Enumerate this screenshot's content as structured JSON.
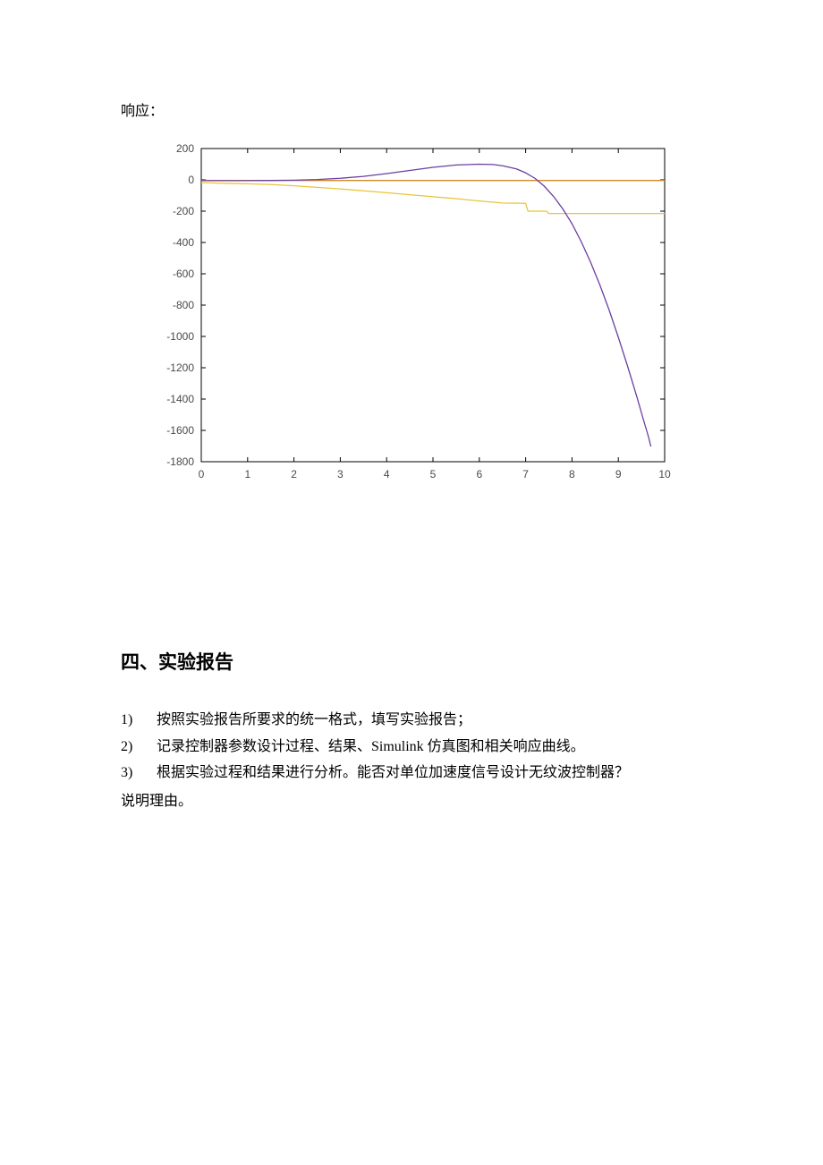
{
  "response_label": "响应：",
  "chart": {
    "type": "line",
    "background_color": "#ffffff",
    "axis_color": "#000000",
    "tick_color": "#000000",
    "label_color": "#4a4a4a",
    "label_fontsize": 12,
    "xlim": [
      0,
      10
    ],
    "ylim": [
      -1800,
      200
    ],
    "xtick_step": 1,
    "ytick_step": 200,
    "xticks": [
      0,
      1,
      2,
      3,
      4,
      5,
      6,
      7,
      8,
      9,
      10
    ],
    "yticks": [
      200,
      0,
      -200,
      -400,
      -600,
      -800,
      -1000,
      -1200,
      -1400,
      -1600,
      -1800
    ],
    "line_width": 1.3,
    "series": [
      {
        "name": "orange",
        "color": "#d18a2a",
        "points": [
          [
            0,
            -4
          ],
          [
            1,
            -4
          ],
          [
            2,
            -4
          ],
          [
            3,
            -4
          ],
          [
            4,
            -4
          ],
          [
            5,
            -4
          ],
          [
            6,
            -4
          ],
          [
            7,
            -4
          ],
          [
            8,
            -4
          ],
          [
            9,
            -4
          ],
          [
            10,
            -4
          ]
        ]
      },
      {
        "name": "yellow",
        "color": "#e8c53a",
        "points": [
          [
            0,
            -18
          ],
          [
            0.5,
            -22
          ],
          [
            1,
            -25
          ],
          [
            1.5,
            -30
          ],
          [
            2,
            -38
          ],
          [
            2.5,
            -48
          ],
          [
            3,
            -58
          ],
          [
            3.5,
            -70
          ],
          [
            4,
            -82
          ],
          [
            4.5,
            -95
          ],
          [
            5,
            -108
          ],
          [
            5.5,
            -120
          ],
          [
            6,
            -135
          ],
          [
            6.5,
            -148
          ],
          [
            7,
            -150
          ],
          [
            7.05,
            -200
          ],
          [
            7.45,
            -200
          ],
          [
            7.5,
            -215
          ],
          [
            8,
            -215
          ],
          [
            8.5,
            -215
          ],
          [
            9,
            -215
          ],
          [
            9.5,
            -215
          ],
          [
            10,
            -215
          ]
        ]
      },
      {
        "name": "purple",
        "color": "#6b3fa0",
        "points": [
          [
            0,
            -5
          ],
          [
            0.5,
            -5
          ],
          [
            1,
            -5
          ],
          [
            1.5,
            -4
          ],
          [
            2,
            -2
          ],
          [
            2.5,
            2
          ],
          [
            3,
            10
          ],
          [
            3.5,
            22
          ],
          [
            4,
            40
          ],
          [
            4.5,
            60
          ],
          [
            5,
            80
          ],
          [
            5.5,
            95
          ],
          [
            6,
            100
          ],
          [
            6.3,
            98
          ],
          [
            6.5,
            90
          ],
          [
            6.8,
            70
          ],
          [
            7,
            45
          ],
          [
            7.2,
            10
          ],
          [
            7.4,
            -40
          ],
          [
            7.6,
            -105
          ],
          [
            7.8,
            -185
          ],
          [
            8,
            -280
          ],
          [
            8.2,
            -395
          ],
          [
            8.4,
            -525
          ],
          [
            8.6,
            -670
          ],
          [
            8.8,
            -830
          ],
          [
            9,
            -1005
          ],
          [
            9.2,
            -1190
          ],
          [
            9.4,
            -1385
          ],
          [
            9.55,
            -1540
          ],
          [
            9.65,
            -1640
          ],
          [
            9.7,
            -1700
          ]
        ]
      }
    ]
  },
  "section_heading": "四、实验报告",
  "list": {
    "items": [
      {
        "num": "1)",
        "text": "按照实验报告所要求的统一格式，填写实验报告；"
      },
      {
        "num": "2)",
        "text": "记录控制器参数设计过程、结果、Simulink 仿真图和相关响应曲线。"
      },
      {
        "num": "3)",
        "text": "根据实验过程和结果进行分析。能否对单位加速度信号设计无纹波控制器？"
      }
    ],
    "reason_label": "说明理由。"
  }
}
